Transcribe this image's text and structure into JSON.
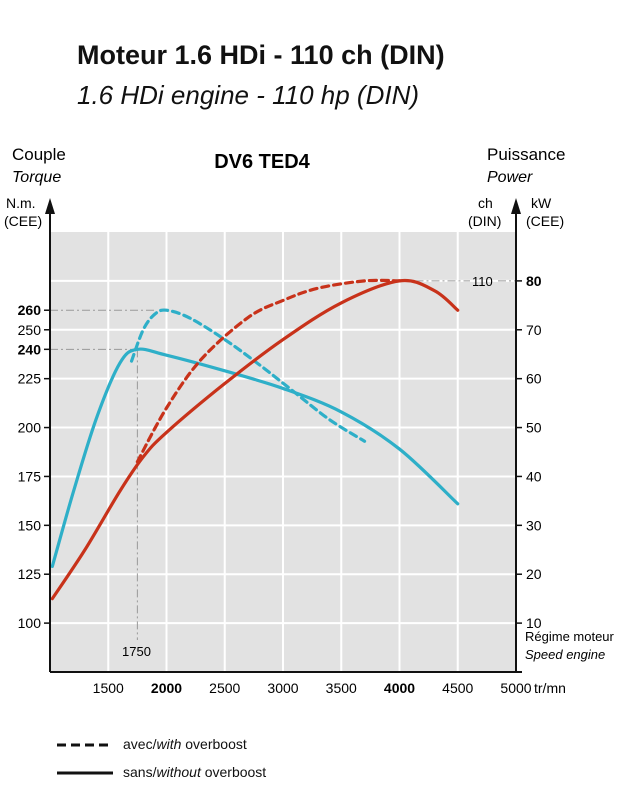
{
  "header": {
    "title_fr": "Moteur 1.6 HDi - 110 ch (DIN)",
    "title_en": "1.6 HDi engine - 110 hp (DIN)"
  },
  "axes": {
    "left_title_fr": "Couple",
    "left_title_en": "Torque",
    "left_unit_1": "N.m.",
    "left_unit_2": "(CEE)",
    "right_title_fr": "Puissance",
    "right_title_en": "Power",
    "right_unit_ch_1": "ch",
    "right_unit_ch_2": "(DIN)",
    "right_unit_kw_1": "kW",
    "right_unit_kw_2": "(CEE)",
    "speed_label_fr": "Régime moteur",
    "speed_label_en": "Speed engine",
    "x_unit": "tr/mn",
    "marker_1750": "1750",
    "marker_110": "110"
  },
  "legend": {
    "dashed_prefix": "avec/",
    "dashed_italic": "with",
    "dashed_suffix": " overboost",
    "solid_prefix": "sans/",
    "solid_italic": "without",
    "solid_suffix": " overboost"
  },
  "colors": {
    "torque": "#2eafc8",
    "power": "#c8321a",
    "background": "#e2e2e2",
    "grid": "#ffffff",
    "guide": "#999999"
  },
  "chart_data": {
    "type": "line",
    "title": "DV6 TED4",
    "x": {
      "min": 1000,
      "max": 5000,
      "ticks": [
        1500,
        2000,
        2500,
        3000,
        3500,
        4000,
        4500,
        5000
      ],
      "tick_labels": [
        "1500",
        "2000",
        "2500",
        "3000",
        "3500",
        "4000",
        "4500",
        "5000"
      ],
      "bold_ticks": [
        "2000",
        "4000"
      ]
    },
    "y_left": {
      "min": 75,
      "max": 300,
      "ticks": [
        100,
        125,
        150,
        175,
        200,
        225,
        240,
        250,
        260
      ],
      "tick_labels": [
        "100",
        "125",
        "150",
        "175",
        "200",
        "225",
        "240",
        "250",
        "260"
      ],
      "bold_ticks": [
        "240",
        "260"
      ]
    },
    "y_right": {
      "min": 0,
      "max": 90,
      "ticks": [
        10,
        20,
        30,
        40,
        50,
        60,
        70,
        80
      ],
      "tick_labels": [
        "10",
        "20",
        "30",
        "40",
        "50",
        "60",
        "70",
        "80"
      ],
      "bold_ticks": [
        "80"
      ]
    },
    "grid": true,
    "series": [
      {
        "key": "torque_overboost",
        "axis": "left",
        "style": "dashed",
        "color": "torque",
        "points": [
          [
            1700,
            234
          ],
          [
            1800,
            250
          ],
          [
            1900,
            258
          ],
          [
            2000,
            260
          ],
          [
            2200,
            256
          ],
          [
            2500,
            245
          ],
          [
            2800,
            232
          ],
          [
            3100,
            218
          ],
          [
            3400,
            204
          ],
          [
            3700,
            193
          ]
        ]
      },
      {
        "key": "torque_normal",
        "axis": "left",
        "style": "solid",
        "color": "torque",
        "points": [
          [
            1020,
            129
          ],
          [
            1200,
            167
          ],
          [
            1400,
            205
          ],
          [
            1600,
            233
          ],
          [
            1750,
            240
          ],
          [
            2000,
            237
          ],
          [
            2500,
            229
          ],
          [
            3000,
            220
          ],
          [
            3500,
            208
          ],
          [
            4000,
            189
          ],
          [
            4500,
            161
          ]
        ]
      },
      {
        "key": "power_overboost",
        "axis": "right",
        "style": "dashed",
        "color": "power",
        "points": [
          [
            1750,
            43
          ],
          [
            2000,
            54
          ],
          [
            2300,
            64
          ],
          [
            2700,
            72.5
          ],
          [
            3000,
            76
          ],
          [
            3300,
            78.5
          ],
          [
            3700,
            80
          ],
          [
            4000,
            80
          ]
        ]
      },
      {
        "key": "power_normal",
        "axis": "right",
        "style": "solid",
        "color": "power",
        "points": [
          [
            1020,
            15
          ],
          [
            1300,
            25
          ],
          [
            1600,
            37
          ],
          [
            1800,
            44
          ],
          [
            2000,
            49
          ],
          [
            2500,
            59
          ],
          [
            3000,
            68
          ],
          [
            3500,
            75.5
          ],
          [
            4000,
            80
          ],
          [
            4300,
            78
          ],
          [
            4500,
            74
          ]
        ]
      }
    ]
  }
}
